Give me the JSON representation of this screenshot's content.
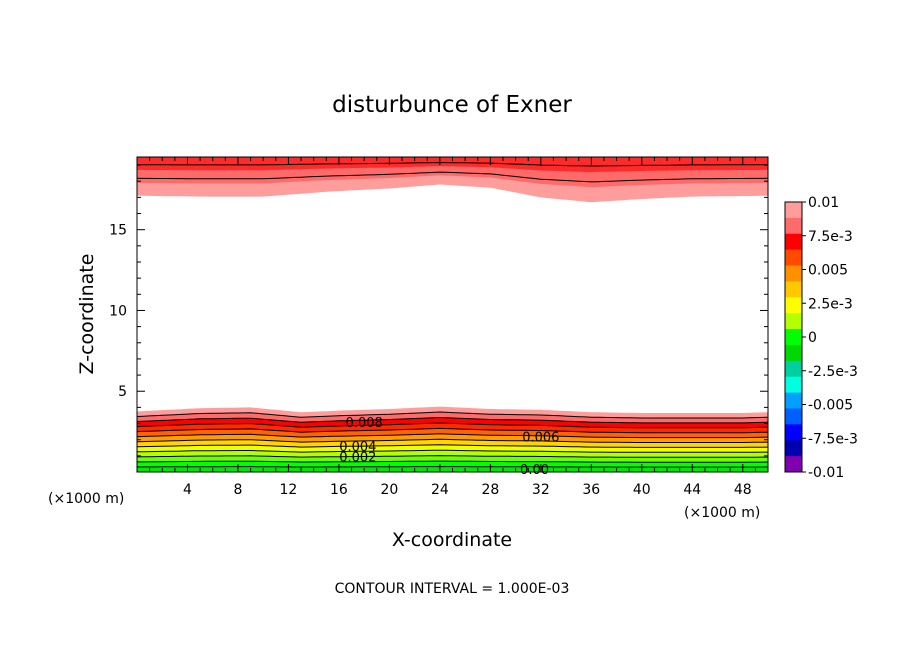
{
  "chart_data": {
    "type": "contour",
    "title": "disturbunce of Exner",
    "xlabel": "X-coordinate",
    "ylabel": "Z-coordinate",
    "x_unit": "(×1000 m)",
    "footer": "CONTOUR INTERVAL = 1.000E-03",
    "xlim": [
      0,
      50
    ],
    "ylim": [
      0,
      19.5
    ],
    "x_ticks": [
      4,
      8,
      12,
      16,
      20,
      24,
      28,
      32,
      36,
      40,
      44,
      48
    ],
    "x_tick_labels": [
      "4",
      "8",
      "12",
      "16",
      "20",
      "24",
      "28",
      "32",
      "36",
      "40",
      "44",
      "48"
    ],
    "y_ticks": [
      5,
      10,
      15
    ],
    "y_tick_labels": [
      "5",
      "10",
      "15"
    ],
    "contour_interval": 0.001,
    "contour_labels": [
      {
        "text": "0.008",
        "x": 18.0,
        "y": 3.1
      },
      {
        "text": "0.006",
        "x": 32.0,
        "y": 2.2
      },
      {
        "text": "0.004",
        "x": 17.5,
        "y": 1.6
      },
      {
        "text": "0.002",
        "x": 17.5,
        "y": 0.95
      },
      {
        "text": "0.00",
        "x": 31.5,
        "y": 0.2
      }
    ],
    "colorbar": {
      "min": -0.01,
      "max": 0.01,
      "labels": [
        "0.01",
        "7.5e-3",
        "0.005",
        "2.5e-3",
        "0",
        "-2.5e-3",
        "-0.005",
        "-7.5e-3",
        "-0.01"
      ],
      "colors": [
        "#ff9c9c",
        "#ff6a6a",
        "#ff0000",
        "#ff4a00",
        "#ff9000",
        "#ffc800",
        "#ffff00",
        "#b4ff00",
        "#00ff00",
        "#00d800",
        "#00d0a0",
        "#00ffe0",
        "#00a0ff",
        "#0060ff",
        "#0000ff",
        "#0000b0",
        "#8000b0"
      ]
    },
    "lower_layer": {
      "x": [
        0,
        5,
        9,
        13,
        16,
        20,
        24,
        28,
        32,
        36,
        40,
        44,
        48,
        50
      ],
      "top_height": [
        3.75,
        3.95,
        4.0,
        3.7,
        3.8,
        3.9,
        4.05,
        3.9,
        3.85,
        3.7,
        3.65,
        3.65,
        3.65,
        3.7
      ],
      "band_colors": [
        "#00e800",
        "#00ff00",
        "#6cff00",
        "#b4ff00",
        "#eeff00",
        "#ffd400",
        "#ff9c00",
        "#ff6200",
        "#ff2a00",
        "#ff0000",
        "#ff6a6a",
        "#ff9c9c"
      ]
    },
    "upper_layer": {
      "x": [
        0,
        5,
        10,
        15,
        20,
        24,
        28,
        32,
        36,
        40,
        44,
        50
      ],
      "bottom_height": [
        17.1,
        17.05,
        17.05,
        17.35,
        17.55,
        17.8,
        17.6,
        17.0,
        16.7,
        16.9,
        17.05,
        17.1
      ],
      "band_colors": [
        "#ff9c9c",
        "#ff6a6a",
        "#ff2a2a"
      ]
    }
  }
}
